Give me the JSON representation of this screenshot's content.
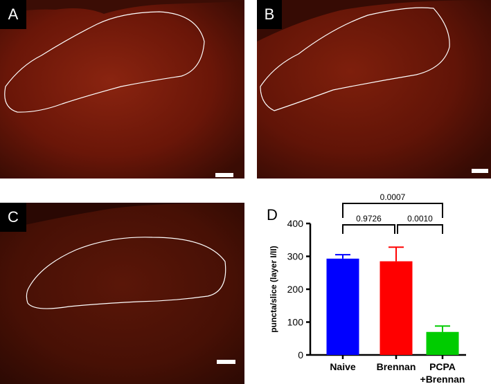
{
  "panels": [
    {
      "letter": "A"
    },
    {
      "letter": "B"
    },
    {
      "letter": "C"
    }
  ],
  "image_colors": {
    "tissue": "#7a1a08",
    "background": "#2e0903",
    "outline": "#ffffff"
  },
  "chart_data": {
    "panel_letter": "D",
    "type": "bar",
    "ylabel": "puncta/slice (layer I/II)",
    "ylim": [
      0,
      400
    ],
    "yticks": [
      0,
      100,
      200,
      300,
      400
    ],
    "categories": [
      "Naive",
      "Brennan",
      "PCPA\n+Brennan"
    ],
    "values": [
      293,
      285,
      70
    ],
    "errors": [
      12,
      43,
      18
    ],
    "colors": [
      "#0000ff",
      "#ff0000",
      "#00cc00"
    ],
    "comparisons": [
      {
        "from": 0,
        "to": 1,
        "p": "0.9726"
      },
      {
        "from": 1,
        "to": 2,
        "p": "0.0010"
      },
      {
        "from": 0,
        "to": 2,
        "p": "0.0007"
      }
    ]
  }
}
